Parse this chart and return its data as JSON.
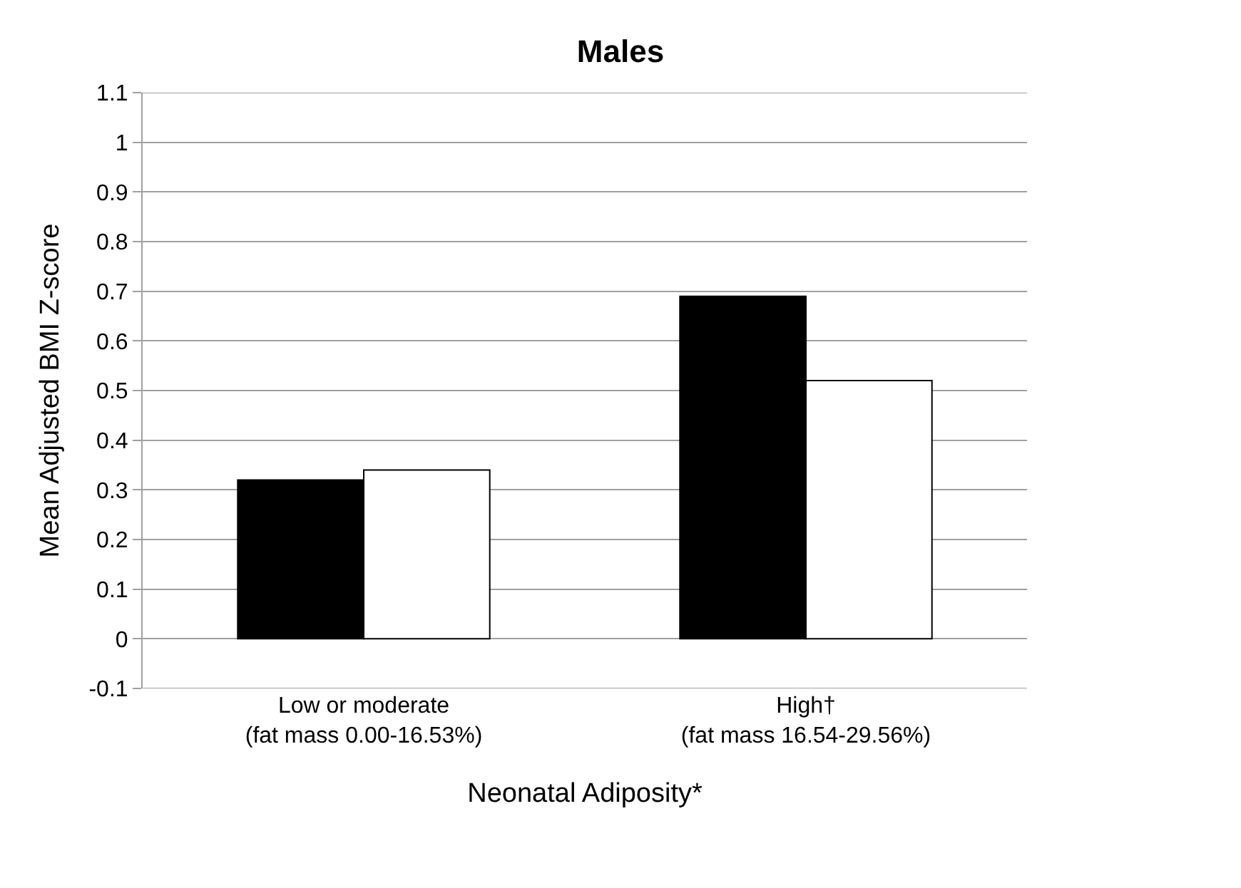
{
  "chart_data": {
    "type": "bar",
    "title": "Males",
    "xlabel": "Neonatal Adiposity*",
    "ylabel": "Mean Adjusted BMI Z-score",
    "categories": [
      "Low or moderate\n(fat mass 0.00-16.53%)",
      "High†\n(fat mass 16.54-29.56%)"
    ],
    "series": [
      {
        "color": "#000000",
        "values": [
          0.32,
          0.69
        ]
      },
      {
        "color": "#ffffff",
        "values": [
          0.34,
          0.52
        ]
      }
    ],
    "ylim": [
      -0.1,
      1.1
    ],
    "yticks": [
      -0.1,
      0,
      0.1,
      0.2,
      0.3,
      0.4,
      0.5,
      0.6,
      0.7,
      0.8,
      0.9,
      1,
      1.1
    ],
    "grid": "y"
  }
}
